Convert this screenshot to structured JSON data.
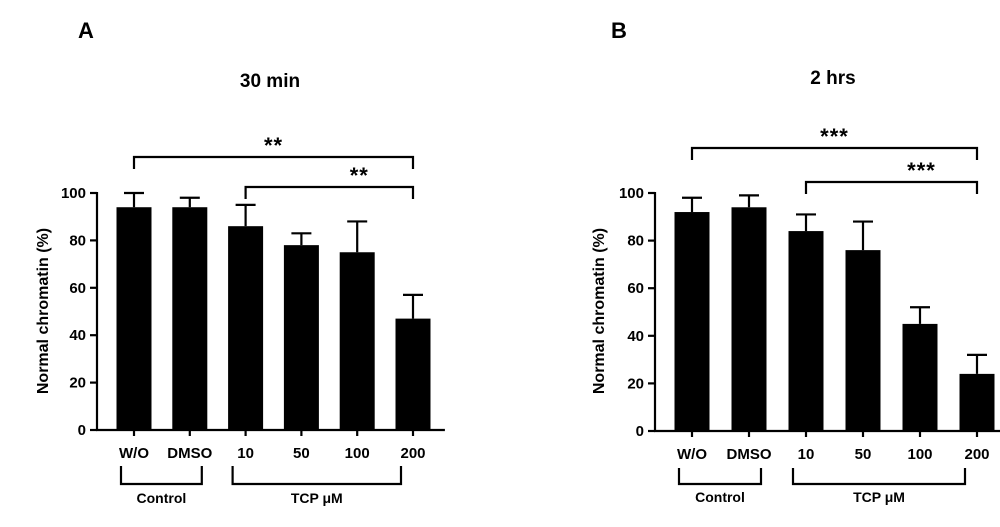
{
  "chart_data": [
    {
      "type": "bar",
      "panel": "A",
      "title": "30 min",
      "ylabel": "Normal chromatin (%)",
      "xlabel": "",
      "ylim": [
        0,
        100
      ],
      "yticks": [
        "0",
        "20",
        "40",
        "60",
        "80",
        "100"
      ],
      "categories": [
        "W/O",
        "DMSO",
        "10",
        "50",
        "100",
        "200"
      ],
      "values": [
        94,
        94,
        86,
        78,
        75,
        47
      ],
      "errors": [
        6,
        4,
        9,
        5,
        13,
        10
      ],
      "bar_color": "#000000",
      "groups": [
        {
          "label": "Control",
          "from": 0,
          "to": 1
        },
        {
          "label": "TCP μM",
          "from": 2,
          "to": 5
        }
      ],
      "significance": [
        {
          "label": "**",
          "from": 0,
          "to": 5
        },
        {
          "label": "**",
          "from": 2,
          "to": 5
        }
      ]
    },
    {
      "type": "bar",
      "panel": "B",
      "title": "2 hrs",
      "ylabel": "Normal chromatin (%)",
      "xlabel": "",
      "ylim": [
        0,
        100
      ],
      "yticks": [
        "0",
        "20",
        "40",
        "60",
        "80",
        "100"
      ],
      "categories": [
        "W/O",
        "DMSO",
        "10",
        "50",
        "100",
        "200"
      ],
      "values": [
        92,
        94,
        84,
        76,
        45,
        24
      ],
      "errors": [
        6,
        5,
        7,
        12,
        7,
        8
      ],
      "bar_color": "#000000",
      "groups": [
        {
          "label": "Control",
          "from": 0,
          "to": 1
        },
        {
          "label": "TCP μM",
          "from": 2,
          "to": 5
        }
      ],
      "significance": [
        {
          "label": "***",
          "from": 0,
          "to": 5
        },
        {
          "label": "***",
          "from": 2,
          "to": 5
        }
      ]
    }
  ]
}
